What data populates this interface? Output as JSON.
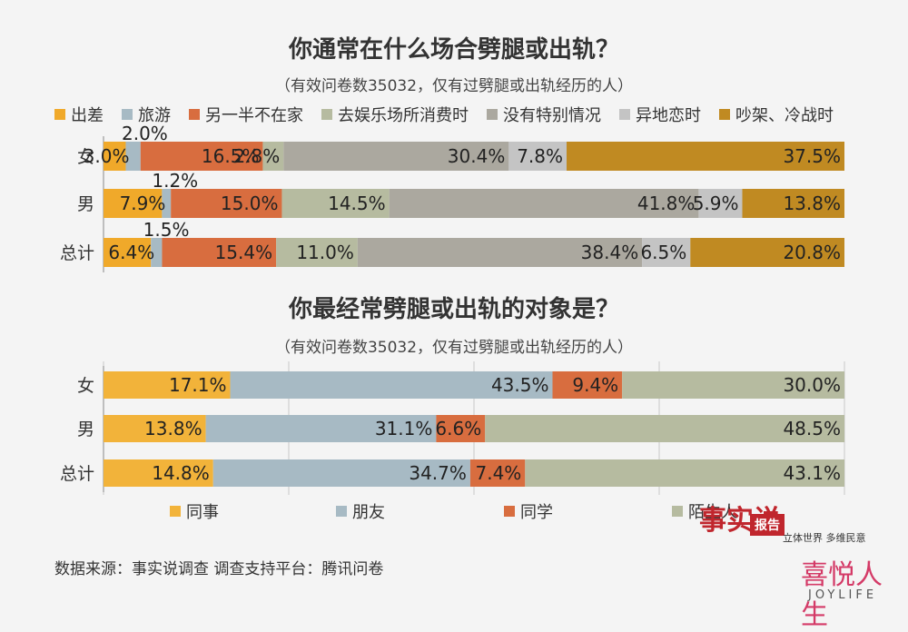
{
  "chart_data": [
    {
      "type": "bar",
      "orientation": "horizontal",
      "stacked": true,
      "title": "你通常在什么场合劈腿或出轨？",
      "subtitle": "（有效问卷数35032，仅有过劈腿或出轨经历的人）",
      "categories": [
        "女",
        "男",
        "总计"
      ],
      "series": [
        {
          "name": "出差",
          "color": "#f0a92a",
          "values": [
            3.0,
            7.9,
            6.4
          ],
          "labels": [
            "3.0%",
            "7.9%",
            "6.4%"
          ]
        },
        {
          "name": "旅游",
          "color": "#a7bac4",
          "values": [
            2.0,
            1.2,
            1.5
          ],
          "labels": [
            "2.0%",
            "1.2%",
            "1.5%"
          ]
        },
        {
          "name": "另一半不在家",
          "color": "#d86d3f",
          "values": [
            16.5,
            15.0,
            15.4
          ],
          "labels": [
            "16.5%",
            "15.0%",
            "15.4%"
          ]
        },
        {
          "name": "去娱乐场所消费时",
          "color": "#b6bba0",
          "values": [
            2.8,
            14.5,
            11.0
          ],
          "labels": [
            "2.8%",
            "14.5%",
            "11.0%"
          ]
        },
        {
          "name": "没有特别情况",
          "color": "#aba89f",
          "values": [
            30.4,
            41.8,
            38.4
          ],
          "labels": [
            "30.4%",
            "41.8%",
            "38.4%"
          ]
        },
        {
          "name": "异地恋时",
          "color": "#c4c4c4",
          "values": [
            7.8,
            5.9,
            6.5
          ],
          "labels": [
            "7.8%",
            "5.9%",
            "6.5%"
          ]
        },
        {
          "name": "吵架、冷战时",
          "color": "#c08a22",
          "values": [
            37.5,
            13.8,
            20.8
          ],
          "labels": [
            "37.5%",
            "13.8%",
            "20.8%"
          ]
        }
      ],
      "xlim": [
        0,
        100
      ],
      "legend": "top"
    },
    {
      "type": "bar",
      "orientation": "horizontal",
      "stacked": true,
      "title": "你最经常劈腿或出轨的对象是？",
      "subtitle": "（有效问卷数35032，仅有过劈腿或出轨经历的人）",
      "categories": [
        "女",
        "男",
        "总计"
      ],
      "series": [
        {
          "name": "同事",
          "color": "#f2b33a",
          "values": [
            17.1,
            13.8,
            14.8
          ],
          "labels": [
            "17.1%",
            "13.8%",
            "14.8%"
          ]
        },
        {
          "name": "朋友",
          "color": "#a7bac4",
          "values": [
            43.5,
            31.1,
            34.7
          ],
          "labels": [
            "43.5%",
            "31.1%",
            "34.7%"
          ]
        },
        {
          "name": "同学",
          "color": "#d86d3f",
          "values": [
            9.4,
            6.6,
            7.4
          ],
          "labels": [
            "9.4%",
            "6.6%",
            "7.4%"
          ]
        },
        {
          "name": "陌生人",
          "color": "#b6bba0",
          "values": [
            30.0,
            48.5,
            43.1
          ],
          "labels": [
            "30.0%",
            "48.5%",
            "43.1%"
          ]
        }
      ],
      "xlim": [
        0,
        100
      ],
      "grid": true,
      "legend": "bottom"
    }
  ],
  "source_text": "数据来源：事实说调查   调查支持平台：腾讯问卷",
  "brand": {
    "name": "喜悦人生",
    "english": "JOYLIFE",
    "report_tag": "报告",
    "slogan": "立体世界 多维民意",
    "mark": "事实说"
  }
}
